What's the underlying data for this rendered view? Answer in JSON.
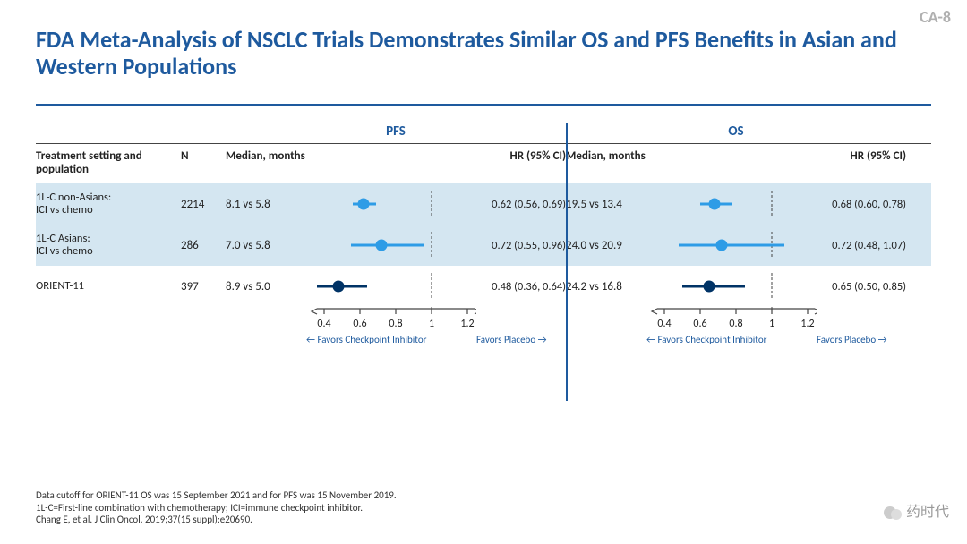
{
  "slide_number": "CA-8",
  "title": "FDA Meta-Analysis of NSCLC Trials Demonstrates Similar OS and PFS Benefits in Asian and Western Populations",
  "colors": {
    "title": "#1e5a9e",
    "rule": "#1e5a9e",
    "shade_row": "#d4e6f1",
    "light_marker": "#2e9ce6",
    "dark_marker": "#003366",
    "text": "#222222",
    "axis": "#444444",
    "label_blue": "#1e5a9e"
  },
  "panel_headers": {
    "pfs": "PFS",
    "os": "OS"
  },
  "column_headers": {
    "group": "Treatment setting and population",
    "n": "N",
    "median": "Median, months",
    "hr": "HR (95% CI)"
  },
  "axis": {
    "ticks": [
      0.4,
      0.6,
      0.8,
      1.0,
      1.2
    ],
    "min": 0.3,
    "max": 1.25,
    "ref": 1.0,
    "favors_left": "← Favors Checkpoint Inhibitor",
    "favors_right": "Favors Placebo →"
  },
  "rows": [
    {
      "name": "1L-C non-Asians:\nICI vs chemo",
      "n": "2214",
      "pfs": {
        "median": "8.1 vs 5.8",
        "hr_text": "0.62 (0.56, 0.69)",
        "hr": 0.62,
        "lo": 0.56,
        "hi": 0.69
      },
      "os": {
        "median": "19.5 vs 13.4",
        "hr_text": "0.68 (0.60, 0.78)",
        "hr": 0.68,
        "lo": 0.6,
        "hi": 0.78
      },
      "style": "light",
      "shade": true
    },
    {
      "name": "1L-C Asians:\nICI vs chemo",
      "n": "286",
      "pfs": {
        "median": "7.0 vs 5.8",
        "hr_text": "0.72 (0.55, 0.96)",
        "hr": 0.72,
        "lo": 0.55,
        "hi": 0.96
      },
      "os": {
        "median": "24.0 vs 20.9",
        "hr_text": "0.72 (0.48, 1.07)",
        "hr": 0.72,
        "lo": 0.48,
        "hi": 1.07
      },
      "style": "light",
      "shade": true
    },
    {
      "name": "ORIENT-11",
      "n": "397",
      "pfs": {
        "median": "8.9 vs 5.0",
        "hr_text": "0.48 (0.36, 0.64)",
        "hr": 0.48,
        "lo": 0.36,
        "hi": 0.64
      },
      "os": {
        "median": "24.2 vs 16.8",
        "hr_text": "0.65 (0.50, 0.85)",
        "hr": 0.65,
        "lo": 0.5,
        "hi": 0.85
      },
      "style": "dark",
      "shade": false
    }
  ],
  "footnotes": [
    "Data cutoff for ORIENT-11 OS was 15 September 2021 and for PFS was 15 November 2019.",
    "1L-C=First-line combination with chemotherapy; ICI=immune checkpoint inhibitor.",
    "Chang E, et al. J Clin Oncol. 2019;37(15 suppl):e20690."
  ],
  "watermark": "药时代"
}
